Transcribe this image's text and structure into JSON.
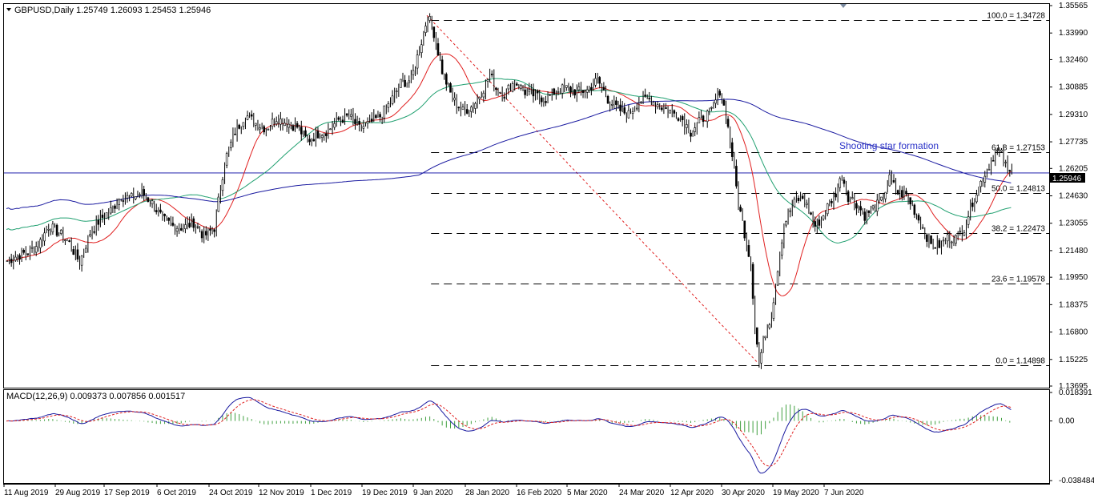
{
  "chart_data": {
    "type": "candlestick",
    "symbol_header": "GBPUSD,Daily  1.25749 1.26093 1.25453 1.25946",
    "current_price": "1.25946",
    "price_axis_ticks": [
      "1.35565",
      "1.33990",
      "1.32460",
      "1.30885",
      "1.29310",
      "1.27735",
      "1.26205",
      "1.24630",
      "1.23055",
      "1.21480",
      "1.19950",
      "1.18375",
      "1.16800",
      "1.15225",
      "1.13695"
    ],
    "ylim": [
      1.13695,
      1.35565
    ],
    "x_tick_labels": [
      "11 Aug 2019",
      "29 Aug 2019",
      "17 Sep 2019",
      "6 Oct 2019",
      "24 Oct 2019",
      "12 Nov 2019",
      "1 Dec 2019",
      "19 Dec 2019",
      "9 Jan 2020",
      "28 Jan 2020",
      "16 Feb 2020",
      "5 Mar 2020",
      "24 Mar 2020",
      "12 Apr 2020",
      "30 Apr 2020",
      "19 May 2020",
      "7 Jun 2020"
    ],
    "fibonacci_levels": [
      {
        "label": "100.0 = 1.34728",
        "value": 1.34728
      },
      {
        "label": "61.8 = 1.27153",
        "value": 1.27153
      },
      {
        "label": "50.0 = 1.24813",
        "value": 1.24813
      },
      {
        "label": "38.2 = 1.22473",
        "value": 1.22473
      },
      {
        "label": "23.6 = 1.19578",
        "value": 1.19578
      },
      {
        "label": "0.0 = 1.14898",
        "value": 1.14898
      }
    ],
    "annotation": "Shooting star formation",
    "price_path": [
      [
        0,
        1.209
      ],
      [
        5,
        1.212
      ],
      [
        10,
        1.214
      ],
      [
        15,
        1.218
      ],
      [
        20,
        1.229
      ],
      [
        25,
        1.225
      ],
      [
        30,
        1.219
      ],
      [
        35,
        1.208
      ],
      [
        40,
        1.225
      ],
      [
        45,
        1.233
      ],
      [
        50,
        1.238
      ],
      [
        55,
        1.246
      ],
      [
        60,
        1.245
      ],
      [
        65,
        1.248
      ],
      [
        70,
        1.242
      ],
      [
        75,
        1.233
      ],
      [
        80,
        1.229
      ],
      [
        85,
        1.228
      ],
      [
        90,
        1.231
      ],
      [
        95,
        1.223
      ],
      [
        100,
        1.228
      ],
      [
        105,
        1.266
      ],
      [
        110,
        1.283
      ],
      [
        115,
        1.293
      ],
      [
        120,
        1.288
      ],
      [
        125,
        1.285
      ],
      [
        130,
        1.291
      ],
      [
        135,
        1.288
      ],
      [
        140,
        1.286
      ],
      [
        145,
        1.278
      ],
      [
        150,
        1.282
      ],
      [
        155,
        1.284
      ],
      [
        160,
        1.29
      ],
      [
        165,
        1.292
      ],
      [
        170,
        1.285
      ],
      [
        175,
        1.288
      ],
      [
        180,
        1.292
      ],
      [
        185,
        1.3
      ],
      [
        190,
        1.311
      ],
      [
        195,
        1.313
      ],
      [
        200,
        1.335
      ],
      [
        203,
        1.35
      ],
      [
        206,
        1.34
      ],
      [
        210,
        1.318
      ],
      [
        215,
        1.302
      ],
      [
        220,
        1.295
      ],
      [
        225,
        1.298
      ],
      [
        230,
        1.308
      ],
      [
        233,
        1.316
      ],
      [
        236,
        1.308
      ],
      [
        240,
        1.305
      ],
      [
        245,
        1.312
      ],
      [
        250,
        1.306
      ],
      [
        255,
        1.304
      ],
      [
        260,
        1.302
      ],
      [
        265,
        1.307
      ],
      [
        270,
        1.308
      ],
      [
        275,
        1.306
      ],
      [
        280,
        1.307
      ],
      [
        285,
        1.313
      ],
      [
        290,
        1.302
      ],
      [
        295,
        1.296
      ],
      [
        300,
        1.293
      ],
      [
        305,
        1.301
      ],
      [
        310,
        1.302
      ],
      [
        315,
        1.298
      ],
      [
        320,
        1.295
      ],
      [
        325,
        1.292
      ],
      [
        330,
        1.283
      ],
      [
        335,
        1.29
      ],
      [
        340,
        1.295
      ],
      [
        344,
        1.307
      ],
      [
        347,
        1.293
      ],
      [
        350,
        1.27
      ],
      [
        353,
        1.242
      ],
      [
        356,
        1.225
      ],
      [
        359,
        1.208
      ],
      [
        361,
        1.172
      ],
      [
        363,
        1.15
      ],
      [
        366,
        1.168
      ],
      [
        369,
        1.178
      ],
      [
        372,
        1.205
      ],
      [
        375,
        1.23
      ],
      [
        378,
        1.238
      ],
      [
        381,
        1.244
      ],
      [
        384,
        1.245
      ],
      [
        387,
        1.238
      ],
      [
        390,
        1.229
      ],
      [
        393,
        1.233
      ],
      [
        396,
        1.24
      ],
      [
        400,
        1.248
      ],
      [
        403,
        1.258
      ],
      [
        406,
        1.246
      ],
      [
        410,
        1.242
      ],
      [
        414,
        1.235
      ],
      [
        418,
        1.239
      ],
      [
        422,
        1.243
      ],
      [
        426,
        1.256
      ],
      [
        430,
        1.248
      ],
      [
        434,
        1.247
      ],
      [
        438,
        1.238
      ],
      [
        442,
        1.228
      ],
      [
        446,
        1.218
      ],
      [
        450,
        1.218
      ],
      [
        454,
        1.222
      ],
      [
        458,
        1.222
      ],
      [
        462,
        1.228
      ],
      [
        466,
        1.243
      ],
      [
        470,
        1.254
      ],
      [
        474,
        1.264
      ],
      [
        477,
        1.272
      ],
      [
        480,
        1.27
      ],
      [
        483,
        1.26
      ],
      [
        485,
        1.2595
      ]
    ],
    "macd": {
      "label": "MACD(12,26,9) 0.009373 0.007856 0.001517",
      "axis_ticks": [
        "0.018391",
        "0.00",
        "-0.038484"
      ],
      "ylim": [
        -0.038484,
        0.018391
      ]
    }
  }
}
